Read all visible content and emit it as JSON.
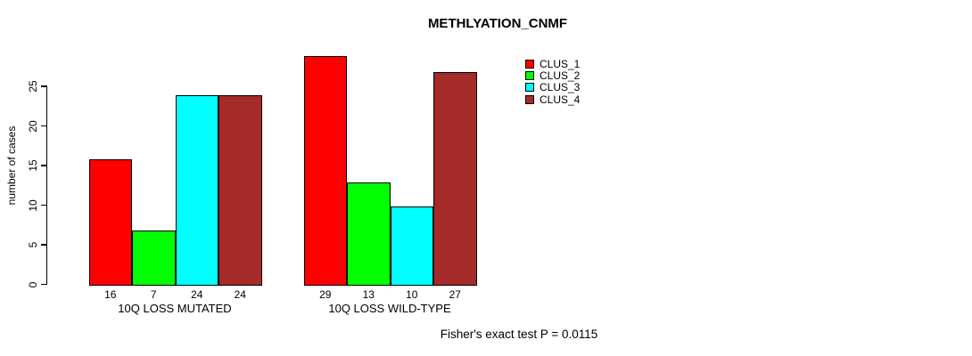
{
  "chart_data": {
    "type": "bar",
    "title": "METHLYATION_CNMF",
    "ylabel": "number of cases",
    "xlabel": "",
    "categories": [
      "10Q LOSS MUTATED",
      "10Q LOSS WILD-TYPE"
    ],
    "series": [
      {
        "name": "CLUS_1",
        "color": "#FF0000",
        "values": [
          16,
          29
        ]
      },
      {
        "name": "CLUS_2",
        "color": "#00FF00",
        "values": [
          7,
          13
        ]
      },
      {
        "name": "CLUS_3",
        "color": "#00FFFF",
        "values": [
          24,
          10
        ]
      },
      {
        "name": "CLUS_4",
        "color": "#A52A2A",
        "values": [
          24,
          27
        ]
      }
    ],
    "bar_value_labels": [
      [
        16,
        7,
        24,
        24
      ],
      [
        29,
        13,
        10,
        27
      ]
    ],
    "yticks": [
      0,
      5,
      10,
      15,
      20,
      25
    ],
    "ylim": [
      0,
      29
    ],
    "grid": false,
    "legend_entries": [
      "CLUS_1",
      "CLUS_2",
      "CLUS_3",
      "CLUS_4"
    ],
    "legend_position": "upper-right-of-plot",
    "annotation": "Fisher's exact test P = 0.0115"
  },
  "colors": {
    "background": "#FFFFFF",
    "axis": "#000000",
    "bar_border": "#000000",
    "text": "#000000"
  }
}
